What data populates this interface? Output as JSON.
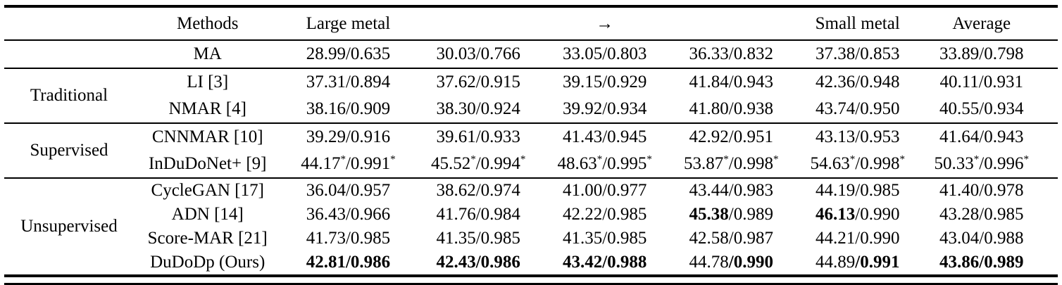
{
  "table": {
    "slash": "/",
    "sup_marker": "*",
    "header": {
      "group_label": "",
      "methods_label": "Methods",
      "col_labels": [
        "Large metal",
        "",
        "→",
        "",
        "Small metal",
        "Average"
      ]
    },
    "groups": [
      {
        "label": "",
        "rows": [
          {
            "method": "MA",
            "cells": [
              {
                "psnr": "28.99",
                "ssim": "0.635"
              },
              {
                "psnr": "30.03",
                "ssim": "0.766"
              },
              {
                "psnr": "33.05",
                "ssim": "0.803"
              },
              {
                "psnr": "36.33",
                "ssim": "0.832"
              },
              {
                "psnr": "37.38",
                "ssim": "0.853"
              },
              {
                "psnr": "33.89",
                "ssim": "0.798"
              }
            ]
          }
        ]
      },
      {
        "label": "Traditional",
        "rows": [
          {
            "method": "LI [3]",
            "cells": [
              {
                "psnr": "37.31",
                "ssim": "0.894"
              },
              {
                "psnr": "37.62",
                "ssim": "0.915"
              },
              {
                "psnr": "39.15",
                "ssim": "0.929"
              },
              {
                "psnr": "41.84",
                "ssim": "0.943"
              },
              {
                "psnr": "42.36",
                "ssim": "0.948"
              },
              {
                "psnr": "40.11",
                "ssim": "0.931"
              }
            ]
          },
          {
            "method": "NMAR [4]",
            "cells": [
              {
                "psnr": "38.16",
                "ssim": "0.909"
              },
              {
                "psnr": "38.30",
                "ssim": "0.924"
              },
              {
                "psnr": "39.92",
                "ssim": "0.934"
              },
              {
                "psnr": "41.80",
                "ssim": "0.938"
              },
              {
                "psnr": "43.74",
                "ssim": "0.950"
              },
              {
                "psnr": "40.55",
                "ssim": "0.934"
              }
            ]
          }
        ]
      },
      {
        "label": "Supervised",
        "rows": [
          {
            "method": "CNNMAR [10]",
            "cells": [
              {
                "psnr": "39.29",
                "ssim": "0.916"
              },
              {
                "psnr": "39.61",
                "ssim": "0.933"
              },
              {
                "psnr": "41.43",
                "ssim": "0.945"
              },
              {
                "psnr": "42.92",
                "ssim": "0.951"
              },
              {
                "psnr": "43.13",
                "ssim": "0.953"
              },
              {
                "psnr": "41.64",
                "ssim": "0.943"
              }
            ]
          },
          {
            "method": "InDuDoNet+ [9]",
            "cells": [
              {
                "psnr": "44.17",
                "ssim": "0.991",
                "sup": true
              },
              {
                "psnr": "45.52",
                "ssim": "0.994",
                "sup": true
              },
              {
                "psnr": "48.63",
                "ssim": "0.995",
                "sup": true
              },
              {
                "psnr": "53.87",
                "ssim": "0.998",
                "sup": true
              },
              {
                "psnr": "54.63",
                "ssim": "0.998",
                "sup": true
              },
              {
                "psnr": "50.33",
                "ssim": "0.996",
                "sup": true
              }
            ]
          }
        ]
      },
      {
        "label": "Unsupervised",
        "rows": [
          {
            "method": "CycleGAN [17]",
            "cells": [
              {
                "psnr": "36.04",
                "ssim": "0.957"
              },
              {
                "psnr": "38.62",
                "ssim": "0.974"
              },
              {
                "psnr": "41.00",
                "ssim": "0.977"
              },
              {
                "psnr": "43.44",
                "ssim": "0.983"
              },
              {
                "psnr": "44.19",
                "ssim": "0.985"
              },
              {
                "psnr": "41.40",
                "ssim": "0.978"
              }
            ]
          },
          {
            "method": "ADN [14]",
            "cells": [
              {
                "psnr": "36.43",
                "ssim": "0.966"
              },
              {
                "psnr": "41.76",
                "ssim": "0.984"
              },
              {
                "psnr": "42.22",
                "ssim": "0.985"
              },
              {
                "psnr": "45.38",
                "ssim": "0.989",
                "psnr_bold": true
              },
              {
                "psnr": "46.13",
                "ssim": "0.990",
                "psnr_bold": true
              },
              {
                "psnr": "43.28",
                "ssim": "0.985"
              }
            ]
          },
          {
            "method": "Score-MAR [21]",
            "cells": [
              {
                "psnr": "41.73",
                "ssim": "0.985"
              },
              {
                "psnr": "41.35",
                "ssim": "0.985"
              },
              {
                "psnr": "41.35",
                "ssim": "0.985"
              },
              {
                "psnr": "42.58",
                "ssim": "0.987"
              },
              {
                "psnr": "44.21",
                "ssim": "0.990"
              },
              {
                "psnr": "43.04",
                "ssim": "0.988"
              }
            ]
          },
          {
            "method": "DuDoDp (Ours)",
            "cells": [
              {
                "psnr": "42.81",
                "ssim": "0.986",
                "psnr_bold": true,
                "ssim_bold": true
              },
              {
                "psnr": "42.43",
                "ssim": "0.986",
                "psnr_bold": true,
                "ssim_bold": true
              },
              {
                "psnr": "43.42",
                "ssim": "0.988",
                "psnr_bold": true,
                "ssim_bold": true
              },
              {
                "psnr": "44.78",
                "ssim": "0.990",
                "ssim_bold": true
              },
              {
                "psnr": "44.89",
                "ssim": "0.991",
                "ssim_bold": true
              },
              {
                "psnr": "43.86",
                "ssim": "0.989",
                "psnr_bold": true,
                "ssim_bold": true
              }
            ]
          }
        ]
      }
    ]
  }
}
